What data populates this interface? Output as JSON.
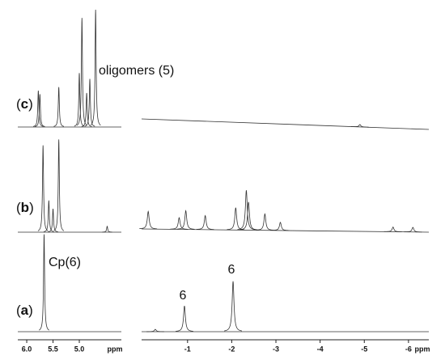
{
  "chart_data": {
    "type": "nmr",
    "xlabel": "ppm",
    "ylim": [
      0,
      100
    ],
    "panels": [
      {
        "xlim": [
          6.17,
          4.2
        ],
        "xticks": [
          {
            "value": 6,
            "label": "6.0"
          },
          5.5,
          {
            "value": 5,
            "label": "5.0"
          }
        ]
      },
      {
        "xlim": [
          0.04,
          -6.46
        ],
        "xticks": [
          -1,
          -2,
          -3,
          -4,
          -5,
          -6
        ]
      }
    ],
    "spectra": [
      {
        "label_parts": [
          "(",
          "c",
          ")"
        ],
        "panels": [
          {
            "x": [
              5.78,
              5.75,
              5.39,
              5.0,
              4.95,
              4.86,
              4.8,
              4.69
            ],
            "values": [
              31,
              28,
              34,
              46,
              93,
              29,
              41,
              100
            ]
          },
          {
            "x": [
              -4.9
            ],
            "values": [
              2
            ]
          }
        ]
      },
      {
        "label_parts": [
          "(",
          "b",
          ")"
        ],
        "panels": [
          {
            "x": [
              5.69,
              5.58,
              5.5,
              5.39,
              4.47
            ],
            "values": [
              74,
              27,
              20,
              79,
              5
            ]
          },
          {
            "x": [
              -0.11,
              -0.81,
              -0.96,
              -1.4,
              -2.09,
              -2.33,
              -2.38,
              -2.75,
              -3.1,
              -5.65,
              -6.1
            ],
            "values": [
              15,
              10,
              16,
              12,
              19,
              34,
              24,
              14,
              7,
              4,
              4
            ]
          }
        ]
      },
      {
        "label_parts": [
          "(",
          "a",
          ")"
        ],
        "panels": [
          {
            "x": [
              5.67
            ],
            "values": [
              83
            ]
          },
          {
            "x": [
              -0.27,
              -0.93,
              -2.03
            ],
            "values": [
              2,
              22,
              43
            ]
          }
        ]
      }
    ],
    "annotations": [
      "oligomers (5)",
      "Cp(6)",
      "6",
      "6"
    ]
  }
}
